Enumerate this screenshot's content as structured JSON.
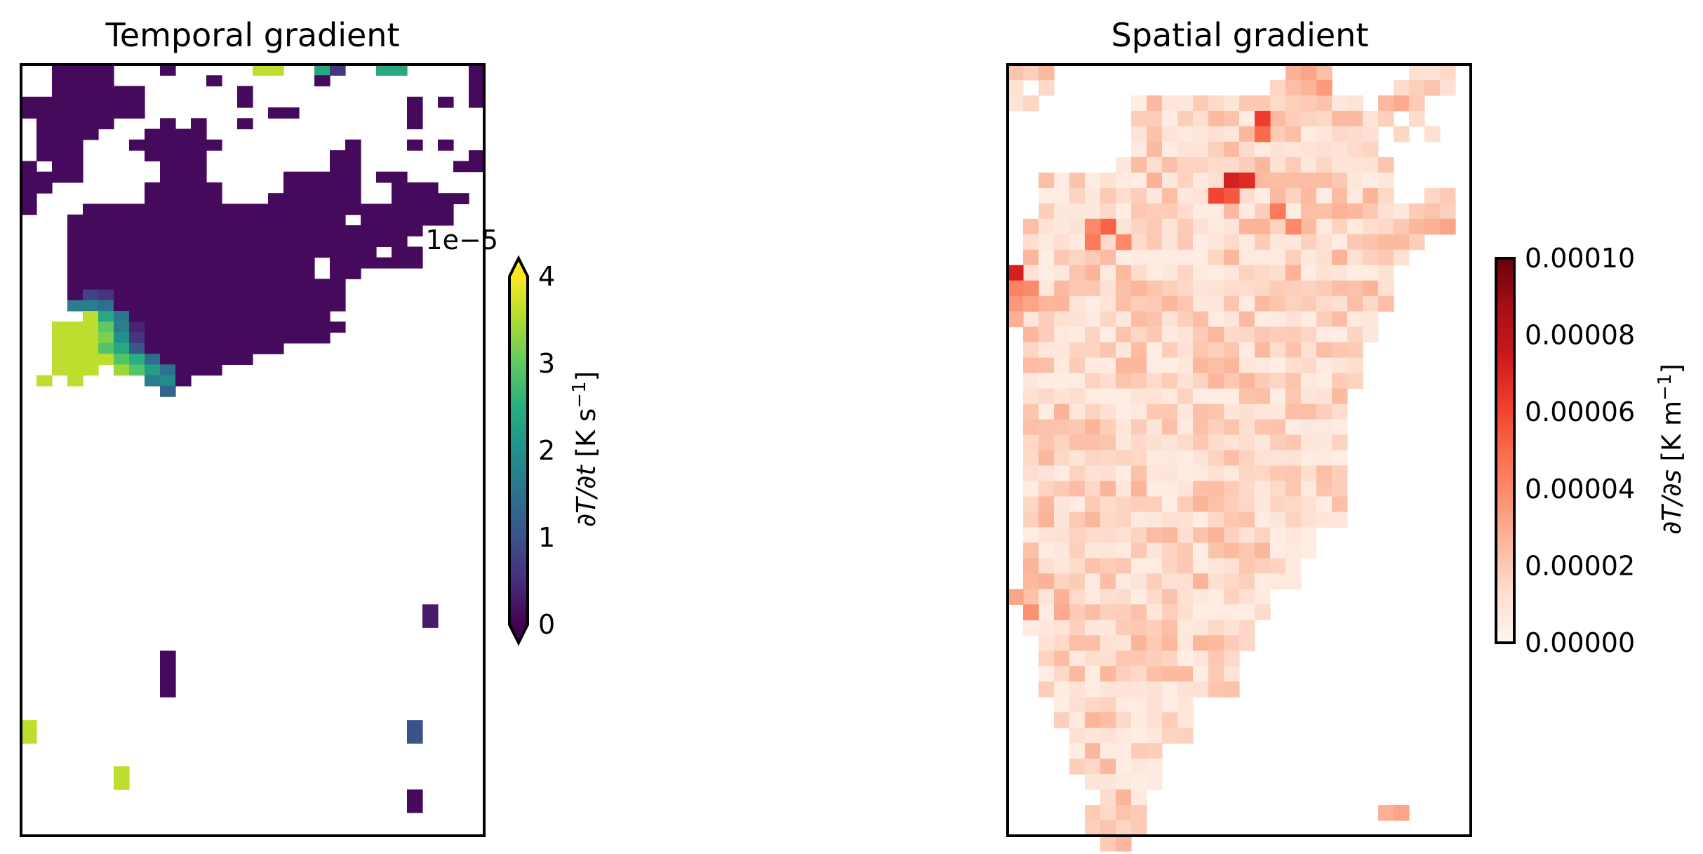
{
  "chart_data": [
    {
      "type": "heatmap",
      "title": "Temporal gradient",
      "xlabel": "",
      "ylabel": "",
      "grid": false,
      "colormap": "viridis",
      "colorbar": {
        "label": "∂T/∂t [K s⁻¹]",
        "label_parts": [
          "∂T/∂t",
          " [K s",
          "−1",
          "]"
        ],
        "range": [
          0,
          4
        ],
        "ticks": [
          "0",
          "1",
          "2",
          "3",
          "4"
        ],
        "offset_text": "1e−5",
        "extend": "both"
      },
      "nrows": 34,
      "ncols": 30,
      "cell_runs": [
        [
          0,
          2,
          5,
          0.1
        ],
        [
          0,
          9,
          9,
          0.1
        ],
        [
          0,
          15,
          16,
          3.6
        ],
        [
          0,
          19,
          19,
          2.4
        ],
        [
          0,
          20,
          20,
          0.6
        ],
        [
          0,
          23,
          24,
          2.4
        ],
        [
          0,
          29,
          29,
          0.1
        ],
        [
          1,
          2,
          5,
          0.1
        ],
        [
          1,
          12,
          12,
          0.1
        ],
        [
          1,
          19,
          19,
          0.1
        ],
        [
          1,
          29,
          29,
          0.1
        ],
        [
          2,
          2,
          7,
          0.1
        ],
        [
          2,
          14,
          14,
          0.1
        ],
        [
          2,
          29,
          29,
          0.1
        ],
        [
          3,
          0,
          7,
          0.1
        ],
        [
          3,
          14,
          14,
          0.1
        ],
        [
          3,
          25,
          25,
          0.1
        ],
        [
          3,
          27,
          27,
          0.1
        ],
        [
          3,
          29,
          29,
          0.1
        ],
        [
          4,
          0,
          7,
          0.1
        ],
        [
          4,
          16,
          17,
          0.1
        ],
        [
          4,
          25,
          25,
          0.1
        ],
        [
          5,
          1,
          5,
          0.1
        ],
        [
          5,
          9,
          9,
          0.1
        ],
        [
          5,
          11,
          11,
          0.1
        ],
        [
          5,
          14,
          14,
          0.1
        ],
        [
          5,
          25,
          25,
          0.1
        ],
        [
          6,
          1,
          4,
          0.1
        ],
        [
          6,
          8,
          11,
          0.1
        ],
        [
          7,
          1,
          3,
          0.1
        ],
        [
          7,
          7,
          12,
          0.1
        ],
        [
          7,
          21,
          21,
          0.1
        ],
        [
          7,
          25,
          25,
          0.1
        ],
        [
          7,
          27,
          27,
          0.1
        ],
        [
          8,
          1,
          3,
          0.1
        ],
        [
          8,
          8,
          11,
          0.1
        ],
        [
          8,
          20,
          21,
          0.1
        ],
        [
          8,
          29,
          29,
          0.1
        ],
        [
          9,
          0,
          0,
          0.1
        ],
        [
          9,
          2,
          3,
          0.1
        ],
        [
          9,
          9,
          11,
          0.1
        ],
        [
          9,
          20,
          21,
          0.1
        ],
        [
          9,
          28,
          29,
          0.1
        ],
        [
          10,
          0,
          3,
          0.1
        ],
        [
          10,
          9,
          11,
          0.1
        ],
        [
          10,
          17,
          21,
          0.1
        ],
        [
          10,
          23,
          24,
          0.1
        ],
        [
          11,
          0,
          1,
          0.1
        ],
        [
          11,
          8,
          12,
          0.1
        ],
        [
          11,
          17,
          21,
          0.1
        ],
        [
          11,
          24,
          26,
          0.1
        ],
        [
          12,
          0,
          0,
          0.1
        ],
        [
          12,
          8,
          12,
          0.1
        ],
        [
          12,
          16,
          21,
          0.1
        ],
        [
          12,
          24,
          28,
          0.1
        ],
        [
          13,
          0,
          0,
          0.1
        ],
        [
          13,
          4,
          24,
          0.1
        ],
        [
          13,
          24,
          27,
          0.1
        ],
        [
          14,
          3,
          20,
          0.1
        ],
        [
          14,
          22,
          27,
          0.1
        ],
        [
          15,
          3,
          25,
          0.1
        ],
        [
          16,
          3,
          24,
          0.1
        ],
        [
          17,
          3,
          22,
          0.1
        ],
        [
          17,
          24,
          25,
          0.1
        ],
        [
          18,
          3,
          18,
          0.1
        ],
        [
          18,
          20,
          25,
          0.1
        ],
        [
          19,
          3,
          18,
          0.1
        ],
        [
          19,
          20,
          21,
          0.1
        ],
        [
          20,
          3,
          20,
          0.1
        ],
        [
          21,
          3,
          3,
          0.1
        ],
        [
          21,
          4,
          4,
          0.8
        ],
        [
          21,
          5,
          5,
          0.6
        ],
        [
          21,
          6,
          20,
          0.1
        ],
        [
          22,
          3,
          3,
          1.7
        ],
        [
          22,
          4,
          4,
          1.7
        ],
        [
          22,
          5,
          5,
          1.5
        ],
        [
          22,
          6,
          20,
          0.1
        ],
        [
          23,
          4,
          4,
          3.6
        ],
        [
          23,
          5,
          5,
          2.4
        ],
        [
          23,
          6,
          6,
          1.6
        ],
        [
          23,
          7,
          19,
          0.1
        ],
        [
          24,
          2,
          2,
          3.6
        ],
        [
          24,
          3,
          4,
          3.6
        ],
        [
          24,
          5,
          5,
          3.0
        ],
        [
          24,
          6,
          6,
          1.7
        ],
        [
          24,
          7,
          7,
          0.4
        ],
        [
          24,
          8,
          20,
          0.1
        ],
        [
          25,
          2,
          4,
          3.6
        ],
        [
          25,
          5,
          5,
          3.2
        ],
        [
          25,
          6,
          6,
          2.0
        ],
        [
          25,
          7,
          7,
          0.6
        ],
        [
          25,
          8,
          19,
          0.1
        ],
        [
          26,
          2,
          4,
          3.6
        ],
        [
          26,
          5,
          5,
          2.9
        ],
        [
          26,
          6,
          6,
          2.4
        ],
        [
          26,
          7,
          7,
          1.1
        ],
        [
          26,
          8,
          16,
          0.1
        ],
        [
          27,
          2,
          4,
          3.6
        ],
        [
          27,
          5,
          5,
          3.6
        ],
        [
          27,
          6,
          6,
          2.9
        ],
        [
          27,
          7,
          7,
          2.5
        ],
        [
          27,
          8,
          8,
          1.4
        ],
        [
          27,
          9,
          14,
          0.1
        ],
        [
          28,
          2,
          4,
          3.6
        ],
        [
          28,
          6,
          6,
          3.4
        ],
        [
          28,
          7,
          7,
          2.9
        ],
        [
          28,
          8,
          8,
          2.2
        ],
        [
          28,
          9,
          9,
          1.5
        ],
        [
          28,
          10,
          12,
          0.1
        ],
        [
          29,
          1,
          1,
          3.6
        ],
        [
          29,
          3,
          3,
          3.6
        ],
        [
          29,
          8,
          8,
          1.7
        ],
        [
          29,
          9,
          9,
          1.9
        ],
        [
          29,
          10,
          10,
          0.1
        ],
        [
          30,
          9,
          9,
          1.3
        ]
      ],
      "lower_cells": [
        {
          "r": 0,
          "c": 26,
          "v": 0.3
        },
        {
          "r": 2,
          "c": 9,
          "v": 0.1
        },
        {
          "r": 3,
          "c": 9,
          "v": 0.1
        },
        {
          "r": 5,
          "c": 0,
          "v": 3.6
        },
        {
          "r": 5,
          "c": 25,
          "v": 1.0
        },
        {
          "r": 7,
          "c": 6,
          "v": 3.6
        },
        {
          "r": 8,
          "c": 25,
          "v": 0.1
        }
      ]
    },
    {
      "type": "heatmap",
      "title": "Spatial gradient",
      "xlabel": "",
      "ylabel": "",
      "grid": false,
      "colormap": "Reds",
      "colorbar": {
        "label": "∂T/∂s [K m⁻¹]",
        "label_parts": [
          "∂T/∂s",
          " [K m",
          "−1",
          "]"
        ],
        "range": [
          0,
          0.0001
        ],
        "ticks": [
          "0.00000",
          "0.00002",
          "0.00004",
          "0.00006",
          "0.00008",
          "0.00010"
        ],
        "extend": "neither"
      },
      "nrows": 50,
      "ncols": 30,
      "shaded_region": [
        [
          2,
          8,
          22
        ],
        [
          3,
          8,
          23
        ],
        [
          4,
          8,
          23
        ],
        [
          5,
          8,
          23
        ],
        [
          6,
          7,
          24
        ],
        [
          7,
          2,
          24
        ],
        [
          8,
          2,
          24
        ],
        [
          9,
          2,
          26
        ],
        [
          10,
          1,
          26
        ],
        [
          11,
          1,
          26
        ],
        [
          12,
          1,
          25
        ],
        [
          13,
          1,
          24
        ],
        [
          14,
          1,
          24
        ],
        [
          15,
          1,
          24
        ],
        [
          16,
          1,
          23
        ],
        [
          17,
          1,
          23
        ],
        [
          18,
          1,
          22
        ],
        [
          19,
          1,
          22
        ],
        [
          20,
          1,
          22
        ],
        [
          21,
          1,
          21
        ],
        [
          22,
          1,
          21
        ],
        [
          23,
          1,
          21
        ],
        [
          24,
          1,
          21
        ],
        [
          25,
          1,
          21
        ],
        [
          26,
          1,
          21
        ],
        [
          27,
          1,
          21
        ],
        [
          28,
          1,
          21
        ],
        [
          29,
          1,
          21
        ],
        [
          30,
          1,
          19
        ],
        [
          31,
          1,
          19
        ],
        [
          32,
          1,
          18
        ],
        [
          33,
          1,
          18
        ],
        [
          34,
          1,
          16
        ],
        [
          35,
          1,
          16
        ],
        [
          36,
          1,
          15
        ],
        [
          37,
          2,
          15
        ],
        [
          38,
          2,
          14
        ],
        [
          39,
          2,
          14
        ],
        [
          40,
          2,
          14
        ],
        [
          41,
          3,
          11
        ],
        [
          42,
          3,
          11
        ],
        [
          43,
          4,
          11
        ],
        [
          44,
          4,
          9
        ],
        [
          45,
          4,
          9
        ],
        [
          46,
          5,
          9
        ],
        [
          47,
          6,
          8
        ],
        [
          48,
          6,
          8
        ],
        [
          49,
          6,
          7
        ],
        [
          50,
          6,
          7
        ]
      ],
      "extra_cells": [
        {
          "r": 0,
          "c": 0,
          "v": 2.2e-05
        },
        {
          "r": 0,
          "c": 1,
          "v": 1.8e-05
        },
        {
          "r": 0,
          "c": 2,
          "v": 2.5e-05
        },
        {
          "r": 1,
          "c": 0,
          "v": 1.2e-05
        },
        {
          "r": 1,
          "c": 2,
          "v": 1.5e-05
        },
        {
          "r": 2,
          "c": 0,
          "v": 1e-05
        },
        {
          "r": 2,
          "c": 1,
          "v": 1.6e-05
        },
        {
          "r": 0,
          "c": 18,
          "v": 2.8e-05
        },
        {
          "r": 0,
          "c": 19,
          "v": 3.2e-05
        },
        {
          "r": 0,
          "c": 20,
          "v": 2.4e-05
        },
        {
          "r": 1,
          "c": 17,
          "v": 1.6e-05
        },
        {
          "r": 1,
          "c": 18,
          "v": 2.4e-05
        },
        {
          "r": 1,
          "c": 19,
          "v": 2.7e-05
        },
        {
          "r": 1,
          "c": 20,
          "v": 3.5e-05
        },
        {
          "r": 2,
          "c": 18,
          "v": 1.8e-05
        },
        {
          "r": 2,
          "c": 19,
          "v": 2e-05
        },
        {
          "r": 0,
          "c": 26,
          "v": 1.2e-05
        },
        {
          "r": 0,
          "c": 27,
          "v": 1e-05
        },
        {
          "r": 0,
          "c": 28,
          "v": 1.5e-05
        },
        {
          "r": 1,
          "c": 25,
          "v": 1.4e-05
        },
        {
          "r": 1,
          "c": 26,
          "v": 1.8e-05
        },
        {
          "r": 1,
          "c": 27,
          "v": 2.2e-05
        },
        {
          "r": 1,
          "c": 28,
          "v": 1.2e-05
        },
        {
          "r": 2,
          "c": 24,
          "v": 2.5e-05
        },
        {
          "r": 2,
          "c": 25,
          "v": 3e-05
        },
        {
          "r": 2,
          "c": 26,
          "v": 2e-05
        },
        {
          "r": 3,
          "c": 24,
          "v": 1.8e-05
        },
        {
          "r": 3,
          "c": 26,
          "v": 1.4e-05
        },
        {
          "r": 4,
          "c": 25,
          "v": 1.6e-05
        },
        {
          "r": 4,
          "c": 27,
          "v": 1.2e-05
        },
        {
          "r": 8,
          "c": 27,
          "v": 1.6e-05
        },
        {
          "r": 8,
          "c": 28,
          "v": 2e-05
        },
        {
          "r": 9,
          "c": 27,
          "v": 2.2e-05
        },
        {
          "r": 9,
          "c": 28,
          "v": 1.8e-05
        },
        {
          "r": 10,
          "c": 27,
          "v": 2.8e-05
        },
        {
          "r": 10,
          "c": 28,
          "v": 3.2e-05
        },
        {
          "r": 13,
          "c": 0,
          "v": 7.2e-05
        },
        {
          "r": 14,
          "c": 0,
          "v": 4.2e-05
        },
        {
          "r": 14,
          "c": 1,
          "v": 4e-05
        },
        {
          "r": 15,
          "c": 0,
          "v": 3.6e-05
        },
        {
          "r": 15,
          "c": 1,
          "v": 3.2e-05
        },
        {
          "r": 16,
          "c": 0,
          "v": 2.8e-05
        },
        {
          "r": 3,
          "c": 16,
          "v": 6.2e-05
        },
        {
          "r": 4,
          "c": 16,
          "v": 5e-05
        },
        {
          "r": 7,
          "c": 14,
          "v": 7.2e-05
        },
        {
          "r": 7,
          "c": 15,
          "v": 6.8e-05
        },
        {
          "r": 8,
          "c": 13,
          "v": 6e-05
        },
        {
          "r": 8,
          "c": 14,
          "v": 5.5e-05
        },
        {
          "r": 10,
          "c": 6,
          "v": 5.2e-05
        },
        {
          "r": 10,
          "c": 5,
          "v": 4e-05
        },
        {
          "r": 11,
          "c": 5,
          "v": 4.5e-05
        },
        {
          "r": 11,
          "c": 7,
          "v": 4e-05
        },
        {
          "r": 9,
          "c": 17,
          "v": 4.5e-05
        },
        {
          "r": 10,
          "c": 18,
          "v": 4e-05
        },
        {
          "r": 34,
          "c": 0,
          "v": 3.2e-05
        },
        {
          "r": 35,
          "c": 1,
          "v": 3.8e-05
        },
        {
          "r": 35,
          "c": 3,
          "v": 3e-05
        },
        {
          "r": 48,
          "c": 24,
          "v": 2.8e-05
        },
        {
          "r": 48,
          "c": 25,
          "v": 3.2e-05
        },
        {
          "r": 48,
          "c": 5,
          "v": 2e-05
        },
        {
          "r": 48,
          "c": 6,
          "v": 1.5e-05
        },
        {
          "r": 48,
          "c": 7,
          "v": 2.2e-05
        },
        {
          "r": 48,
          "c": 8,
          "v": 2e-05
        },
        {
          "r": 49,
          "c": 5,
          "v": 1.8e-05
        },
        {
          "r": 49,
          "c": 6,
          "v": 2.2e-05
        },
        {
          "r": 49,
          "c": 7,
          "v": 1.6e-05
        },
        {
          "r": 49,
          "c": 8,
          "v": 2e-05
        }
      ],
      "value_range_estimate": [
        5e-06,
        7e-05
      ]
    }
  ]
}
